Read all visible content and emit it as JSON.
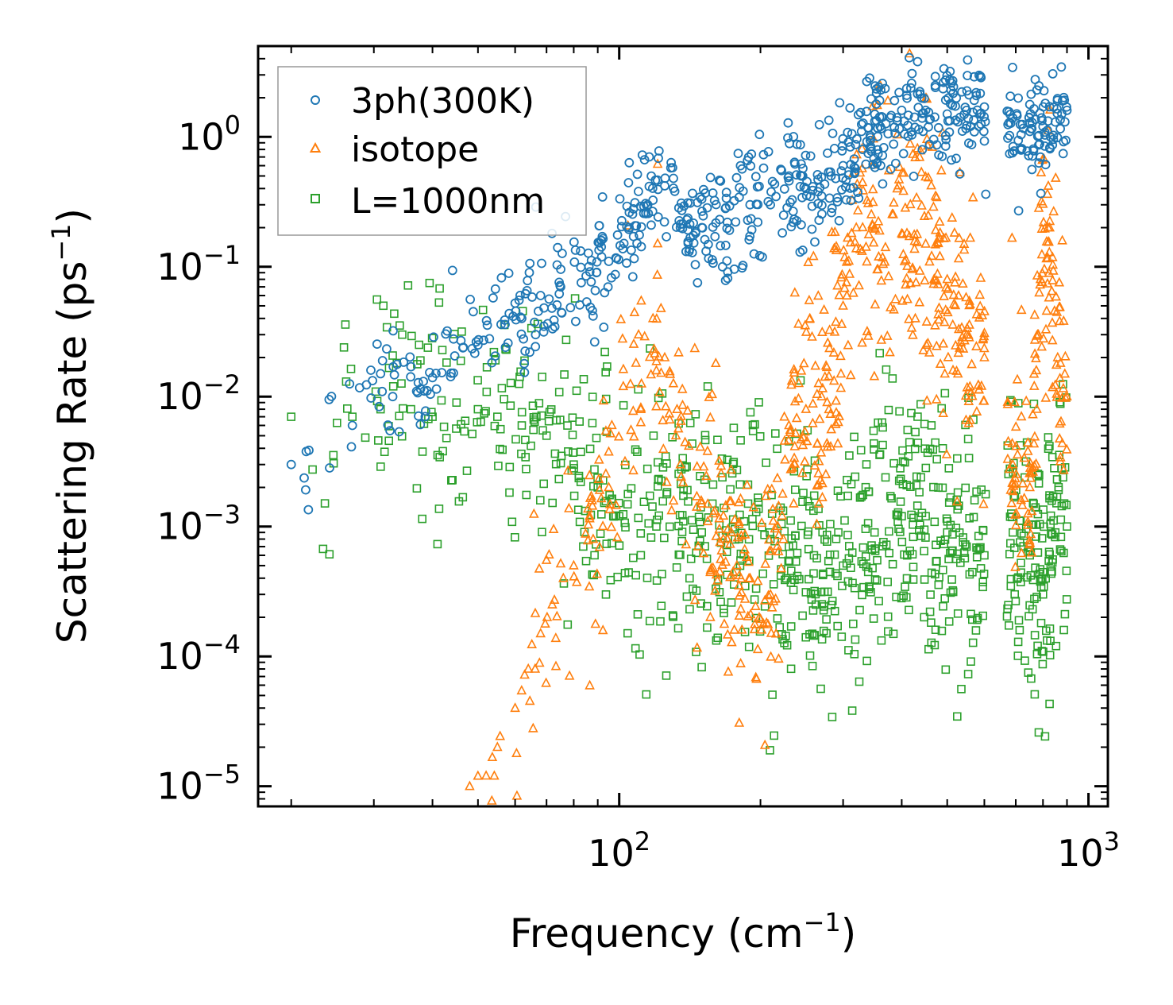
{
  "chart_data": {
    "type": "scatter",
    "title": "",
    "xlabel": {
      "base": "Frequency (cm",
      "sup": "−1",
      "close": ")"
    },
    "ylabel": {
      "base": "Scattering Rate (ps",
      "sup": "−1",
      "close": ")"
    },
    "xscale": "log",
    "yscale": "log",
    "xlim": [
      17,
      1100
    ],
    "ylim": [
      7e-06,
      5
    ],
    "x_major_ticks": [
      {
        "value": 100,
        "base": "10",
        "exp": "2"
      },
      {
        "value": 1000,
        "base": "10",
        "exp": "3"
      }
    ],
    "y_major_ticks": [
      {
        "value": 1,
        "base": "10",
        "exp": "0"
      },
      {
        "value": 0.1,
        "base": "10",
        "exp": "−1"
      },
      {
        "value": 0.01,
        "base": "10",
        "exp": "−2"
      },
      {
        "value": 0.001,
        "base": "10",
        "exp": "−3"
      },
      {
        "value": 0.0001,
        "base": "10",
        "exp": "−4"
      },
      {
        "value": 1e-05,
        "base": "10",
        "exp": "−5"
      }
    ],
    "legend_position": "top-left",
    "series": [
      {
        "name": "3ph(300K)",
        "marker": "circle",
        "color": "#1f77b4",
        "anchors": [
          [
            20,
            0.003
          ],
          [
            27,
            0.006
          ],
          [
            31,
            0.015
          ],
          [
            33,
            0.017
          ],
          [
            36,
            0.017
          ],
          [
            37,
            0.011
          ],
          [
            40,
            0.014
          ],
          [
            43,
            0.032
          ],
          [
            46,
            0.027
          ],
          [
            50,
            0.025
          ],
          [
            56,
            0.036
          ],
          [
            62,
            0.04
          ],
          [
            68,
            0.06
          ],
          [
            75,
            0.07
          ],
          [
            85,
            0.085
          ],
          [
            95,
            0.11
          ],
          [
            105,
            0.2
          ],
          [
            115,
            0.3
          ],
          [
            125,
            0.42
          ],
          [
            135,
            0.2
          ],
          [
            150,
            0.2
          ],
          [
            170,
            0.22
          ],
          [
            190,
            0.3
          ],
          [
            210,
            0.3
          ],
          [
            230,
            0.5
          ],
          [
            250,
            0.4
          ],
          [
            270,
            0.35
          ],
          [
            300,
            0.6
          ],
          [
            330,
            0.8
          ],
          [
            360,
            1.2
          ],
          [
            400,
            1.6
          ],
          [
            450,
            1.6
          ],
          [
            500,
            1.5
          ],
          [
            550,
            1.6
          ],
          [
            600,
            1.7
          ],
          [
            690,
            1.4
          ],
          [
            750,
            1.1
          ],
          [
            800,
            1.2
          ],
          [
            850,
            1.3
          ],
          [
            900,
            1.6
          ]
        ],
        "gaps": [
          [
            605,
            670
          ]
        ],
        "scatter_dex": 0.22,
        "count": 700
      },
      {
        "name": "isotope",
        "marker": "triangle",
        "color": "#ff7f0e",
        "anchors": [
          [
            48,
            1e-05
          ],
          [
            50,
            1.2e-05
          ],
          [
            55,
            2e-05
          ],
          [
            60,
            4e-05
          ],
          [
            64,
            8e-05
          ],
          [
            68,
            0.00015
          ],
          [
            72,
            0.00025
          ],
          [
            76,
            0.0004
          ],
          [
            80,
            0.0005
          ],
          [
            88,
            0.0008
          ],
          [
            95,
            0.002
          ],
          [
            102,
            0.012
          ],
          [
            110,
            0.03
          ],
          [
            118,
            0.04
          ],
          [
            125,
            0.02
          ],
          [
            135,
            0.003
          ],
          [
            150,
            0.0015
          ],
          [
            170,
            0.0008
          ],
          [
            190,
            0.0004
          ],
          [
            210,
            0.0003
          ],
          [
            230,
            0.006
          ],
          [
            250,
            0.008
          ],
          [
            270,
            0.01
          ],
          [
            300,
            0.05
          ],
          [
            320,
            0.2
          ],
          [
            350,
            0.2
          ],
          [
            400,
            0.18
          ],
          [
            450,
            0.15
          ],
          [
            500,
            0.08
          ],
          [
            550,
            0.03
          ],
          [
            600,
            0.02
          ],
          [
            690,
            0.003
          ],
          [
            750,
            0.002
          ],
          [
            790,
            0.08
          ],
          [
            820,
            0.2
          ],
          [
            860,
            0.02
          ],
          [
            900,
            0.01
          ]
        ],
        "gaps": [
          [
            605,
            670
          ]
        ],
        "scatter_dex": 0.45,
        "count": 750
      },
      {
        "name": "L=1000nm",
        "marker": "square",
        "color": "#2ca02c",
        "anchors": [
          [
            20,
            0.007
          ],
          [
            27,
            0.007
          ],
          [
            31,
            0.008
          ],
          [
            33,
            0.012
          ],
          [
            36,
            0.008
          ],
          [
            40,
            0.007
          ],
          [
            45,
            0.009
          ],
          [
            50,
            0.008
          ],
          [
            55,
            0.007
          ],
          [
            62,
            0.006
          ],
          [
            70,
            0.005
          ],
          [
            80,
            0.003
          ],
          [
            90,
            0.002
          ],
          [
            100,
            0.0012
          ],
          [
            120,
            0.001
          ],
          [
            150,
            0.0009
          ],
          [
            180,
            0.0008
          ],
          [
            210,
            0.0008
          ],
          [
            230,
            0.0007
          ],
          [
            260,
            0.0006
          ],
          [
            300,
            0.0005
          ],
          [
            350,
            0.0009
          ],
          [
            400,
            0.0012
          ],
          [
            450,
            0.0012
          ],
          [
            500,
            0.0009
          ],
          [
            550,
            0.0007
          ],
          [
            600,
            0.0006
          ],
          [
            690,
            0.0009
          ],
          [
            750,
            0.0006
          ],
          [
            800,
            0.0003
          ],
          [
            850,
            0.0009
          ],
          [
            900,
            0.001
          ]
        ],
        "gaps": [
          [
            605,
            670
          ]
        ],
        "scatter_dex": 0.5,
        "count": 900
      }
    ]
  }
}
